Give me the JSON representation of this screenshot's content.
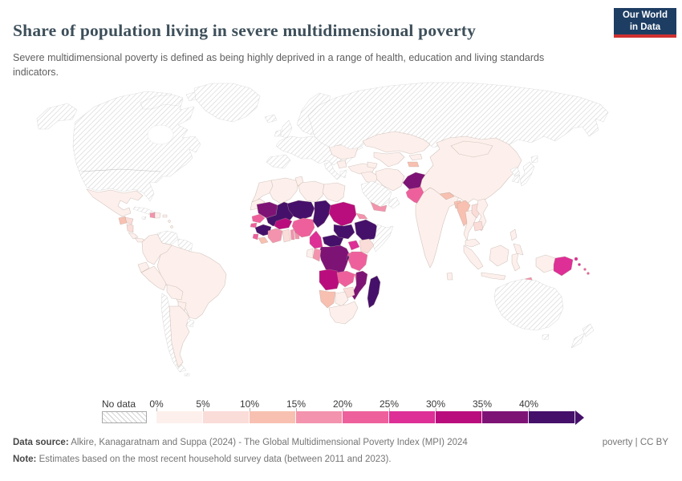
{
  "header": {
    "title": "Share of population living in severe multidimensional poverty",
    "subtitle": "Severe multidimensional poverty is defined as being highly deprived in a range of health, education and living standards indicators.",
    "logo": {
      "line1": "Our World",
      "line2": "in Data"
    }
  },
  "legend": {
    "no_data_label": "No data",
    "ticks": [
      "0%",
      "5%",
      "10%",
      "15%",
      "20%",
      "25%",
      "30%",
      "35%",
      "40%"
    ]
  },
  "footer": {
    "source_label": "Data source:",
    "source": " Alkire, Kanagaratnam and Suppa (2024) - The Global Multidimensional Poverty Index (MPI) 2024",
    "note_label": "Note:",
    "note": " Estimates based on the most recent household survey data (between 2011 and 2023).",
    "license": "poverty | CC BY"
  },
  "chart_data": {
    "type": "choropleth",
    "title": "Share of population living in severe multidimensional poverty",
    "unit": "% of population",
    "legend_position": "bottom",
    "no_data_style": "diagonal-hatch",
    "bands": [
      {
        "label": "0-5%",
        "color": "#fdf0ec"
      },
      {
        "label": "5-10%",
        "color": "#fadcd8"
      },
      {
        "label": "10-15%",
        "color": "#f8c0b1"
      },
      {
        "label": "15-20%",
        "color": "#f393ad"
      },
      {
        "label": "20-25%",
        "color": "#ee609c"
      },
      {
        "label": "25-30%",
        "color": "#dd2f96"
      },
      {
        "label": "30-35%",
        "color": "#ba0d7d"
      },
      {
        "label": "35-40%",
        "color": "#7e1376"
      },
      {
        "label": "40%+",
        "color": "#45106a"
      }
    ],
    "countries": [
      {
        "name": "United States",
        "band": "no-data"
      },
      {
        "name": "Canada",
        "band": "no-data"
      },
      {
        "name": "Alaska",
        "band": "no-data"
      },
      {
        "name": "Arctic islands",
        "band": "no-data"
      },
      {
        "name": "Greenland",
        "band": "no-data"
      },
      {
        "name": "Iceland",
        "band": "no-data"
      },
      {
        "name": "Cuba",
        "band": "no-data"
      },
      {
        "name": "Jamaica",
        "band": "no-data"
      },
      {
        "name": "Venezuela",
        "band": "no-data"
      },
      {
        "name": "Guyanas",
        "band": "no-data"
      },
      {
        "name": "Chile",
        "band": "no-data"
      },
      {
        "name": "Uruguay",
        "band": "no-data"
      },
      {
        "name": "Falkland Islands",
        "band": "no-data"
      },
      {
        "name": "United Kingdom",
        "band": "no-data"
      },
      {
        "name": "Ireland",
        "band": "no-data"
      },
      {
        "name": "Scandinavia",
        "band": "no-data"
      },
      {
        "name": "Mainland Europe",
        "band": "no-data"
      },
      {
        "name": "Iberia",
        "band": "no-data"
      },
      {
        "name": "Italy",
        "band": "no-data"
      },
      {
        "name": "Greece",
        "band": "no-data"
      },
      {
        "name": "Russia",
        "band": "no-data"
      },
      {
        "name": "Saudi Arabia",
        "band": "no-data"
      },
      {
        "name": "Oman",
        "band": "no-data"
      },
      {
        "name": "Somalia",
        "band": "no-data"
      },
      {
        "name": "Japan",
        "band": "no-data"
      },
      {
        "name": "South Korea",
        "band": "no-data"
      },
      {
        "name": "North Korea",
        "band": "no-data"
      },
      {
        "name": "Australia",
        "band": "no-data"
      },
      {
        "name": "New Zealand",
        "band": "no-data"
      },
      {
        "name": "Mexico",
        "band": "0-5%"
      },
      {
        "name": "Costa Rica",
        "band": "0-5%"
      },
      {
        "name": "Panama",
        "band": "0-5%"
      },
      {
        "name": "Dominican Republic",
        "band": "0-5%"
      },
      {
        "name": "Puerto Rico",
        "band": "0-5%"
      },
      {
        "name": "Lesser Antilles",
        "band": "0-5%"
      },
      {
        "name": "Colombia",
        "band": "0-5%"
      },
      {
        "name": "Ecuador",
        "band": "0-5%"
      },
      {
        "name": "Peru",
        "band": "0-5%"
      },
      {
        "name": "Brazil",
        "band": "0-5%"
      },
      {
        "name": "Bolivia",
        "band": "0-5%"
      },
      {
        "name": "Paraguay",
        "band": "0-5%"
      },
      {
        "name": "Argentina",
        "band": "0-5%"
      },
      {
        "name": "Morocco",
        "band": "0-5%"
      },
      {
        "name": "Western Sahara",
        "band": "0-5%"
      },
      {
        "name": "Algeria",
        "band": "0-5%"
      },
      {
        "name": "Tunisia",
        "band": "0-5%"
      },
      {
        "name": "Libya",
        "band": "0-5%"
      },
      {
        "name": "Egypt",
        "band": "0-5%"
      },
      {
        "name": "Gabon",
        "band": "0-5%"
      },
      {
        "name": "Botswana",
        "band": "0-5%"
      },
      {
        "name": "South Africa",
        "band": "0-5%"
      },
      {
        "name": "Ukraine",
        "band": "0-5%"
      },
      {
        "name": "Serbia",
        "band": "0-5%"
      },
      {
        "name": "Turkey",
        "band": "0-5%"
      },
      {
        "name": "Caucasus",
        "band": "0-5%"
      },
      {
        "name": "Iraq",
        "band": "0-5%"
      },
      {
        "name": "Iran",
        "band": "0-5%"
      },
      {
        "name": "Kazakhstan",
        "band": "0-5%"
      },
      {
        "name": "Uzbekistan",
        "band": "0-5%"
      },
      {
        "name": "Kyrgyzstan",
        "band": "0-5%"
      },
      {
        "name": "India",
        "band": "0-5%"
      },
      {
        "name": "China",
        "band": "0-5%"
      },
      {
        "name": "Mongolia",
        "band": "0-5%"
      },
      {
        "name": "Thailand",
        "band": "0-5%"
      },
      {
        "name": "Vietnam",
        "band": "0-5%"
      },
      {
        "name": "Malaysia",
        "band": "0-5%"
      },
      {
        "name": "Indonesia",
        "band": "0-5%"
      },
      {
        "name": "Philippines",
        "band": "0-5%"
      },
      {
        "name": "Sri Lanka",
        "band": "0-5%"
      },
      {
        "name": "Honduras",
        "band": "5-10%"
      },
      {
        "name": "Nicaragua",
        "band": "5-10%"
      },
      {
        "name": "Ghana",
        "band": "5-10%"
      },
      {
        "name": "Kenya",
        "band": "5-10%"
      },
      {
        "name": "Zimbabwe",
        "band": "5-10%"
      },
      {
        "name": "Laos",
        "band": "5-10%"
      },
      {
        "name": "Cambodia",
        "band": "5-10%"
      },
      {
        "name": "Guatemala",
        "band": "10-15%"
      },
      {
        "name": "Liberia",
        "band": "10-15%"
      },
      {
        "name": "Namibia",
        "band": "10-15%"
      },
      {
        "name": "Tajikistan",
        "band": "10-15%"
      },
      {
        "name": "Nepal",
        "band": "10-15%"
      },
      {
        "name": "Bangladesh",
        "band": "10-15%"
      },
      {
        "name": "Myanmar",
        "band": "10-15%"
      },
      {
        "name": "Haiti",
        "band": "15-20%"
      },
      {
        "name": "Cote d'Ivoire",
        "band": "15-20%"
      },
      {
        "name": "Togo",
        "band": "15-20%"
      },
      {
        "name": "Benin",
        "band": "15-20%"
      },
      {
        "name": "Yemen",
        "band": "15-20%"
      },
      {
        "name": "Eritrea",
        "band": "15-20%"
      },
      {
        "name": "Congo",
        "band": "15-20%"
      },
      {
        "name": "Timor-Leste",
        "band": "15-20%"
      },
      {
        "name": "Senegal",
        "band": "20-25%"
      },
      {
        "name": "Guinea-Bissau",
        "band": "20-25%"
      },
      {
        "name": "Sierra Leone",
        "band": "20-25%"
      },
      {
        "name": "Nigeria",
        "band": "20-25%"
      },
      {
        "name": "Tanzania",
        "band": "20-25%"
      },
      {
        "name": "Zambia",
        "band": "20-25%"
      },
      {
        "name": "Malawi",
        "band": "20-25%"
      },
      {
        "name": "Rwanda",
        "band": "20-25%"
      },
      {
        "name": "Pakistan",
        "band": "20-25%"
      },
      {
        "name": "Solomon Islands",
        "band": "20-25%"
      },
      {
        "name": "Cameroon",
        "band": "25-30%"
      },
      {
        "name": "Uganda",
        "band": "25-30%"
      },
      {
        "name": "Papua New Guinea",
        "band": "25-30%"
      },
      {
        "name": "Burkina Faso",
        "band": "30-35%"
      },
      {
        "name": "Sudan",
        "band": "30-35%"
      },
      {
        "name": "Angola",
        "band": "30-35%"
      },
      {
        "name": "Mauritania",
        "band": "35-40%"
      },
      {
        "name": "DR Congo",
        "band": "35-40%"
      },
      {
        "name": "Mozambique",
        "band": "35-40%"
      },
      {
        "name": "Afghanistan",
        "band": "35-40%"
      },
      {
        "name": "Mali",
        "band": "40%+"
      },
      {
        "name": "Niger",
        "band": "40%+"
      },
      {
        "name": "Chad",
        "band": "40%+"
      },
      {
        "name": "Central African Republic",
        "band": "40%+"
      },
      {
        "name": "South Sudan",
        "band": "40%+"
      },
      {
        "name": "Ethiopia",
        "band": "40%+"
      },
      {
        "name": "Guinea",
        "band": "40%+"
      },
      {
        "name": "Burundi",
        "band": "40%+"
      },
      {
        "name": "Madagascar",
        "band": "40%+"
      }
    ]
  }
}
